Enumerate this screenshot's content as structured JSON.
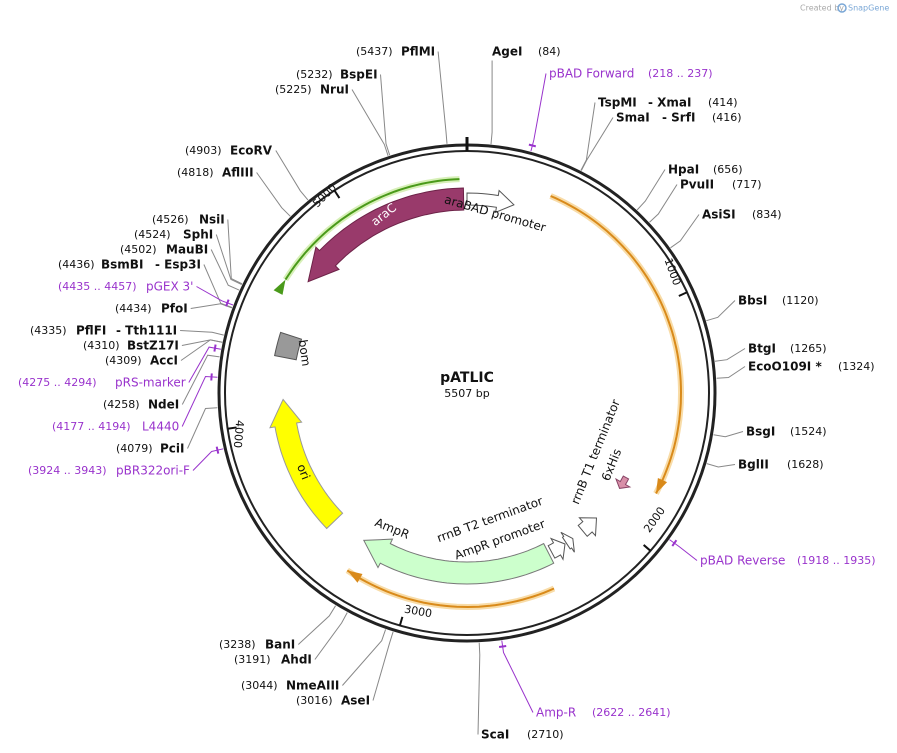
{
  "watermark": {
    "prefix": "Created by",
    "brand": "SnapGene"
  },
  "plasmid": {
    "name": "pATLIC",
    "size": "5507 bp"
  },
  "ruler": [
    "1000",
    "2000",
    "3000",
    "4000",
    "5000"
  ],
  "features": [
    "araC",
    "araBAD promoter",
    "bom",
    "ori",
    "AmpR",
    "rrnB T2 terminator",
    "AmpR promoter",
    "rrnB T1 terminator",
    "6xHis"
  ],
  "sites": [
    {
      "names": [
        "PflMI"
      ],
      "position": "(5437)"
    },
    {
      "names": [
        "AgeI"
      ],
      "position": "(84)"
    },
    {
      "names": [
        "BspEI"
      ],
      "position": "(5232)"
    },
    {
      "names": [
        "NruI"
      ],
      "position": "(5225)"
    },
    {
      "names": [
        "TspMI",
        "- XmaI"
      ],
      "position": "(414)"
    },
    {
      "names": [
        "SmaI",
        "- SrfI"
      ],
      "position": "(416)"
    },
    {
      "names": [
        "HpaI"
      ],
      "position": "(656)"
    },
    {
      "names": [
        "PvuII"
      ],
      "position": "(717)"
    },
    {
      "names": [
        "AsiSI"
      ],
      "position": "(834)"
    },
    {
      "names": [
        "BbsI"
      ],
      "position": "(1120)"
    },
    {
      "names": [
        "BtgI"
      ],
      "position": "(1265)"
    },
    {
      "names": [
        "EcoO109I *"
      ],
      "position": "(1324)"
    },
    {
      "names": [
        "BsgI"
      ],
      "position": "(1524)"
    },
    {
      "names": [
        "BglII"
      ],
      "position": "(1628)"
    },
    {
      "names": [
        "ScaI"
      ],
      "position": "(2710)"
    },
    {
      "names": [
        "AseI"
      ],
      "position": "(3016)"
    },
    {
      "names": [
        "NmeAIII"
      ],
      "position": "(3044)"
    },
    {
      "names": [
        "AhdI"
      ],
      "position": "(3191)"
    },
    {
      "names": [
        "BanI"
      ],
      "position": "(3238)"
    },
    {
      "names": [
        "PciI"
      ],
      "position": "(4079)"
    },
    {
      "names": [
        "NdeI"
      ],
      "position": "(4258)"
    },
    {
      "names": [
        "AccI"
      ],
      "position": "(4309)"
    },
    {
      "names": [
        "BstZ17I"
      ],
      "position": "(4310)"
    },
    {
      "names": [
        "PflFI",
        "- Tth111I"
      ],
      "position": "(4335)"
    },
    {
      "names": [
        "PfoI"
      ],
      "position": "(4434)"
    },
    {
      "names": [
        "BsmBI",
        "- Esp3I"
      ],
      "position": "(4436)"
    },
    {
      "names": [
        "MauBI"
      ],
      "position": "(4502)"
    },
    {
      "names": [
        "SphI"
      ],
      "position": "(4524)"
    },
    {
      "names": [
        "NsiI"
      ],
      "position": "(4526)"
    },
    {
      "names": [
        "AflIII"
      ],
      "position": "(4818)"
    },
    {
      "names": [
        "EcoRV"
      ],
      "position": "(4903)"
    }
  ],
  "primers": [
    {
      "name": "pBAD Forward",
      "range": "(218 .. 237)"
    },
    {
      "name": "pBAD Reverse",
      "range": "(1918 .. 1935)"
    },
    {
      "name": "Amp-R",
      "range": "(2622 .. 2641)"
    },
    {
      "name": "pBR322ori-F",
      "range": "(3924 .. 3943)"
    },
    {
      "name": "L4440",
      "range": "(4177 .. 4194)"
    },
    {
      "name": "pRS-marker",
      "range": "(4275 .. 4294)"
    },
    {
      "name": "pGEX 3'",
      "range": "(4435 .. 4457)"
    }
  ]
}
